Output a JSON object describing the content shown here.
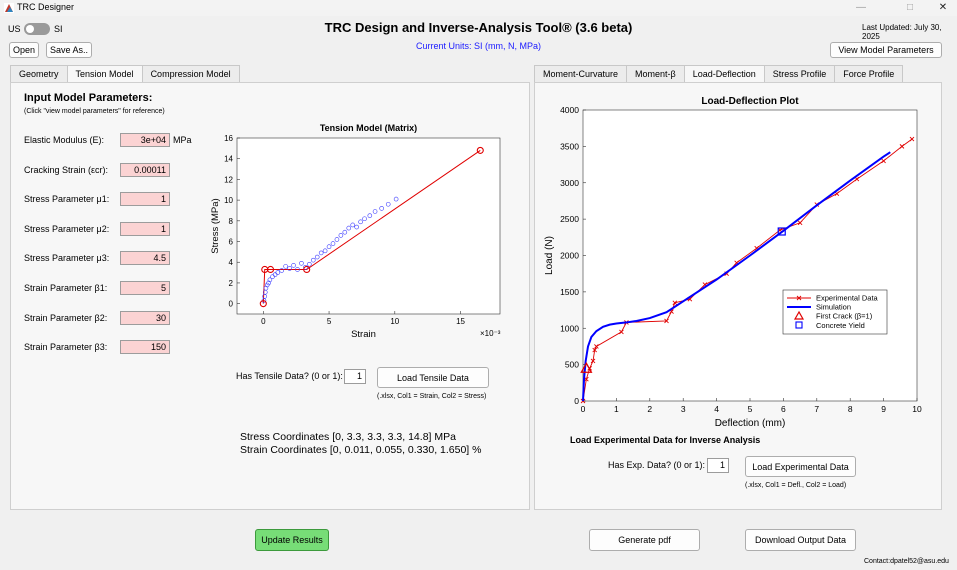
{
  "window": {
    "title": "TRC Designer"
  },
  "header": {
    "app_title": "TRC Design and Inverse-Analysis Tool® (3.6 beta)",
    "last_updated": "Last Updated: July 30, 2025",
    "units_note": "Current Units: SI (mm, N, MPa)",
    "toggle_left": "US",
    "toggle_right": "SI",
    "open_label": "Open",
    "save_label": "Save As..",
    "view_params_label": "View Model Parameters"
  },
  "left_tabs": [
    {
      "label": "Geometry",
      "active": false
    },
    {
      "label": "Tension Model",
      "active": true
    },
    {
      "label": "Compression Model",
      "active": false
    }
  ],
  "right_tabs": [
    {
      "label": "Moment-Curvature",
      "active": false
    },
    {
      "label": "Moment-β",
      "active": false
    },
    {
      "label": "Load-Deflection",
      "active": true
    },
    {
      "label": "Stress Profile",
      "active": false
    },
    {
      "label": "Force Profile",
      "active": false
    }
  ],
  "params": {
    "heading": "Input Model Parameters:",
    "note": "(Click \"view model parameters\" for reference)",
    "modulus_unit": "MPa",
    "items": [
      {
        "label": "Elastic Modulus (E):",
        "value": "3e+04"
      },
      {
        "label": "Cracking Strain (εcr):",
        "value": "0.00011"
      },
      {
        "label": "Stress Parameter μ1:",
        "value": "1"
      },
      {
        "label": "Stress Parameter μ2:",
        "value": "1"
      },
      {
        "label": "Stress Parameter μ3:",
        "value": "4.5"
      },
      {
        "label": "Strain Parameter β1:",
        "value": "5"
      },
      {
        "label": "Strain Parameter β2:",
        "value": "30"
      },
      {
        "label": "Strain Parameter β3:",
        "value": "150"
      }
    ]
  },
  "tensile": {
    "has_data_label": "Has Tensile Data? (0 or 1):",
    "has_data_value": "1",
    "load_button": "Load Tensile Data",
    "hint": "(.xlsx, Col1 = Strain, Col2 = Stress)",
    "stress_coords": "Stress Coordinates [0, 3.3, 3.3, 3.3, 14.8] MPa",
    "strain_coords": "Strain Coordinates [0, 0.011, 0.055, 0.330, 1.650] %"
  },
  "experimental": {
    "heading": "Load Experimental Data for Inverse Analysis",
    "has_data_label": "Has Exp. Data? (0 or 1):",
    "has_data_value": "1",
    "load_button": "Load Experimental Data",
    "hint": "(.xlsx, Col1 = Defl., Col2 = Load)"
  },
  "footer": {
    "update_label": "Update Results",
    "pdf_label": "Generate pdf",
    "download_label": "Download Output Data",
    "contact": "Contact:dpatel52@asu.edu"
  },
  "colors": {
    "update_button": "#77dd77",
    "input_pink": "#fbd3d3",
    "units_blue": "#1a1aff",
    "sim_blue": "#0000ff",
    "exp_red": "#e00000"
  },
  "chart_data": [
    {
      "type": "scatter",
      "title": "Tension Model (Matrix)",
      "xlabel": "Strain",
      "ylabel": "Stress (MPa)",
      "x_multiplier": "×10⁻³",
      "xlim": [
        -2,
        18
      ],
      "ylim": [
        -1,
        16
      ],
      "xticks": [
        0,
        5,
        10,
        15
      ],
      "yticks": [
        0,
        2,
        4,
        6,
        8,
        10,
        12,
        14,
        16
      ],
      "model_x": [
        0,
        0.11,
        0.55,
        3.3,
        16.5
      ],
      "model_y": [
        0,
        3.3,
        3.3,
        3.3,
        14.8
      ],
      "model_markers_x": [
        0,
        0.11,
        0.55,
        3.3,
        16.5
      ],
      "model_markers_y": [
        0,
        3.3,
        3.3,
        3.3,
        14.8
      ],
      "exp_x": [
        0.05,
        0.1,
        0.15,
        0.2,
        0.3,
        0.4,
        0.5,
        0.7,
        0.9,
        1.1,
        1.4,
        1.7,
        2.0,
        2.3,
        2.6,
        2.9,
        3.2,
        3.5,
        3.8,
        4.1,
        4.4,
        4.7,
        5.0,
        5.3,
        5.6,
        5.9,
        6.2,
        6.5,
        6.8,
        7.1,
        7.4,
        7.7,
        8.1,
        8.5,
        9.0,
        9.5,
        10.1
      ],
      "exp_y": [
        0.3,
        0.7,
        1.1,
        1.5,
        1.8,
        2.0,
        2.3,
        2.6,
        2.8,
        3.0,
        3.2,
        3.6,
        3.4,
        3.7,
        3.3,
        3.9,
        3.5,
        3.8,
        4.2,
        4.5,
        4.9,
        5.1,
        5.5,
        5.8,
        6.2,
        6.6,
        6.9,
        7.3,
        7.6,
        7.4,
        7.9,
        8.2,
        8.5,
        8.9,
        9.2,
        9.6,
        10.1
      ]
    },
    {
      "type": "line",
      "title": "Load-Deflection Plot",
      "xlabel": "Deflection (mm)",
      "ylabel": "Load (N)",
      "xlim": [
        0,
        10
      ],
      "ylim": [
        0,
        4000
      ],
      "xticks": [
        0,
        1,
        2,
        3,
        4,
        5,
        6,
        7,
        8,
        9,
        10
      ],
      "yticks": [
        0,
        500,
        1000,
        1500,
        2000,
        2500,
        3000,
        3500,
        4000
      ],
      "legend_position": "center-right",
      "series": [
        {
          "name": "Experimental Data",
          "x": [
            0,
            0.1,
            0.2,
            0.3,
            0.35,
            0.4,
            1.15,
            1.3,
            2.5,
            2.65,
            2.75,
            3.2,
            3.65,
            4.3,
            4.6,
            5.2,
            5.9,
            6.5,
            7.0,
            7.6,
            8.2,
            9.0,
            9.55,
            9.85
          ],
          "y": [
            0,
            300,
            450,
            550,
            700,
            750,
            950,
            1080,
            1100,
            1230,
            1350,
            1400,
            1600,
            1750,
            1900,
            2100,
            2350,
            2450,
            2700,
            2850,
            3050,
            3300,
            3500,
            3600
          ]
        },
        {
          "name": "Simulation",
          "x": [
            0,
            0.03,
            0.08,
            0.15,
            0.25,
            0.4,
            0.6,
            0.8,
            1.0,
            1.3,
            1.6,
            2.0,
            2.5,
            3.0,
            4.0,
            5.0,
            6.0,
            7.0,
            8.0,
            9.0,
            9.2
          ],
          "y": [
            0,
            300,
            550,
            750,
            880,
            960,
            1020,
            1050,
            1065,
            1080,
            1100,
            1140,
            1220,
            1370,
            1670,
            2000,
            2340,
            2690,
            3030,
            3360,
            3420
          ]
        }
      ],
      "first_crack": {
        "name": "First Crack (β=1)",
        "x": 0.1,
        "y": 450
      },
      "concrete_yield": {
        "name": "Concrete Yield",
        "x": 5.95,
        "y": 2330
      }
    }
  ]
}
